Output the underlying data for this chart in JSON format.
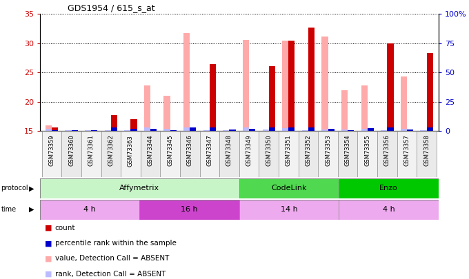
{
  "title": "GDS1954 / 615_s_at",
  "samples": [
    "GSM73359",
    "GSM73360",
    "GSM73361",
    "GSM73362",
    "GSM73363",
    "GSM73344",
    "GSM73345",
    "GSM73346",
    "GSM73347",
    "GSM73348",
    "GSM73349",
    "GSM73350",
    "GSM73351",
    "GSM73352",
    "GSM73353",
    "GSM73354",
    "GSM73355",
    "GSM73356",
    "GSM73357",
    "GSM73358"
  ],
  "red_values": [
    15.6,
    15.2,
    15.2,
    17.8,
    17.0,
    15.2,
    15.2,
    15.2,
    26.5,
    15.2,
    15.2,
    26.1,
    30.5,
    32.7,
    15.2,
    15.2,
    15.2,
    30.0,
    15.2,
    28.3
  ],
  "pink_values": [
    16.0,
    15.2,
    15.2,
    15.2,
    15.2,
    22.8,
    21.0,
    31.7,
    15.2,
    15.2,
    30.6,
    15.2,
    30.5,
    15.2,
    31.1,
    22.0,
    22.8,
    15.2,
    24.3,
    15.2
  ],
  "blue_values": [
    15.2,
    15.2,
    15.2,
    15.6,
    15.4,
    15.4,
    15.2,
    15.6,
    15.6,
    15.3,
    15.4,
    15.6,
    15.6,
    15.6,
    15.4,
    15.2,
    15.5,
    15.6,
    15.3,
    15.6
  ],
  "lightblue_values": [
    15.4,
    15.2,
    15.2,
    15.2,
    15.2,
    15.6,
    15.4,
    15.6,
    15.2,
    15.2,
    15.6,
    15.3,
    15.5,
    15.2,
    15.3,
    15.3,
    15.4,
    15.2,
    15.4,
    15.2
  ],
  "ylim": [
    15.0,
    35.0
  ],
  "yticks_left": [
    15,
    20,
    25,
    30,
    35
  ],
  "yticks_right_labels": [
    "0",
    "25",
    "50",
    "75",
    "100%"
  ],
  "yticks_right_vals": [
    15,
    20,
    25,
    30,
    35
  ],
  "protocol_groups": [
    {
      "label": "Affymetrix",
      "start": 0,
      "end": 10,
      "color": "#c8f5c8"
    },
    {
      "label": "CodeLink",
      "start": 10,
      "end": 15,
      "color": "#50d850"
    },
    {
      "label": "Enzo",
      "start": 15,
      "end": 20,
      "color": "#00c800"
    }
  ],
  "time_groups": [
    {
      "label": "4 h",
      "start": 0,
      "end": 5,
      "color": "#eeaaee"
    },
    {
      "label": "16 h",
      "start": 5,
      "end": 10,
      "color": "#cc44cc"
    },
    {
      "label": "14 h",
      "start": 10,
      "end": 15,
      "color": "#eeaaee"
    },
    {
      "label": "4 h",
      "start": 15,
      "end": 20,
      "color": "#eeaaee"
    }
  ],
  "bar_width": 0.32,
  "ymin": 15.0,
  "colors": {
    "red": "#cc0000",
    "pink": "#ffaaaa",
    "blue": "#0000cc",
    "lightblue": "#bbbbff"
  },
  "bg": "#ffffff",
  "left_tick_color": "#cc0000",
  "right_tick_color": "#0000cc",
  "legend_items": [
    {
      "color": "#cc0000",
      "label": "count"
    },
    {
      "color": "#0000cc",
      "label": "percentile rank within the sample"
    },
    {
      "color": "#ffaaaa",
      "label": "value, Detection Call = ABSENT"
    },
    {
      "color": "#bbbbff",
      "label": "rank, Detection Call = ABSENT"
    }
  ]
}
